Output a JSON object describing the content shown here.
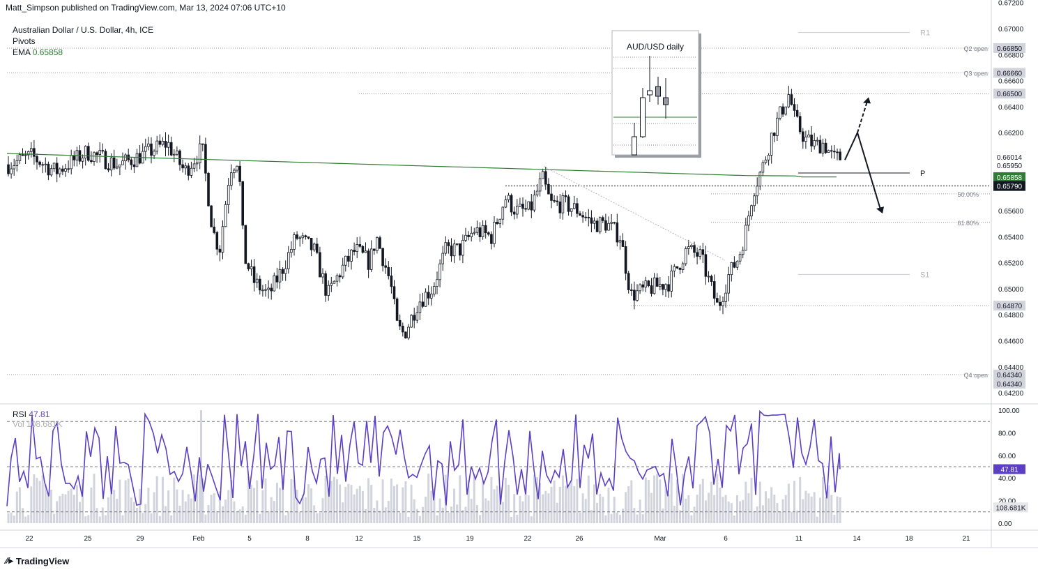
{
  "header": {
    "published": "Matt_Simpson published on TradingView.com, Mar 13, 2024 07:06 UTC+10"
  },
  "legend": {
    "symbol": "Australian Dollar / U.S. Dollar, 4h, ICE",
    "pivots": "Pivots",
    "ema_label": "EMA",
    "ema_value": "0.65858"
  },
  "inset": {
    "title": "AUD/USD daily"
  },
  "rsi_legend": {
    "rsi_label": "RSI",
    "rsi_value": "47.81",
    "vol_label": "Vol",
    "vol_value": "108.681K"
  },
  "footer": {
    "brand": "TradingView"
  },
  "colors": {
    "candle": "#131722",
    "ema": "#2e7d32",
    "rsi": "#5b3fc4",
    "volume": "#d1d4dc",
    "grid_dotted": "#9598a1"
  },
  "chart_data": [
    {
      "type": "candlestick",
      "title": "Australian Dollar / U.S. Dollar, 4h, ICE",
      "ylim": [
        0.6412,
        0.6722
      ],
      "price_axis_ticks": [
        "0.67200",
        "0.67000",
        "0.66800",
        "0.66600",
        "0.66400",
        "0.66200",
        "0.66000",
        "0.65800",
        "0.65600",
        "0.65400",
        "0.65200",
        "0.65000",
        "0.64800",
        "0.64600",
        "0.64400",
        "0.64200"
      ],
      "price_tags": [
        {
          "label": "",
          "value": "0.66850",
          "y": 0.6685,
          "style": "gray"
        },
        {
          "label": "",
          "value": "0.66660",
          "y": 0.6666,
          "style": "gray"
        },
        {
          "label": "",
          "value": "0.66500",
          "y": 0.665,
          "style": "gray"
        },
        {
          "label": "",
          "value": "0.66014",
          "y": 0.66014,
          "style": "plain"
        },
        {
          "label": "",
          "value": "0.65950",
          "y": 0.6595,
          "style": "plain"
        },
        {
          "label": "",
          "value": "0.65858",
          "y": 0.65858,
          "style": "green"
        },
        {
          "label": "",
          "value": "0.65790",
          "y": 0.6579,
          "style": "black"
        },
        {
          "label": "",
          "value": "0.64870",
          "y": 0.6487,
          "style": "gray"
        },
        {
          "label": "",
          "value": "0.64340",
          "y": 0.6434,
          "style": "gray"
        },
        {
          "label": "",
          "value": "0.64340",
          "y": 0.6434,
          "style": "gray2"
        }
      ],
      "levels": [
        {
          "label": "R1",
          "y": 0.6697
        },
        {
          "label": "Q2 open",
          "y": 0.6685
        },
        {
          "label": "Q3 open",
          "y": 0.6666
        },
        {
          "label": "",
          "y": 0.665
        },
        {
          "label": "P",
          "y": 0.6589
        },
        {
          "label": "",
          "y": 0.6579
        },
        {
          "label": "50.00%",
          "y": 0.6573
        },
        {
          "label": "61.80%",
          "y": 0.6551
        },
        {
          "label": "S1",
          "y": 0.6511
        },
        {
          "label": "",
          "y": 0.6487
        },
        {
          "label": "Q4 open",
          "y": 0.6434
        }
      ],
      "x_ticks": [
        "22",
        "25",
        "29",
        "Feb",
        "5",
        "8",
        "12",
        "15",
        "19",
        "22",
        "26",
        "Mar",
        "6",
        "11",
        "14",
        "18",
        "21"
      ],
      "ema": {
        "name": "EMA",
        "start": 0.6604,
        "end": 0.6586
      },
      "projection": {
        "up_target": 0.6644,
        "down_target": 0.6561
      }
    },
    {
      "type": "line",
      "title": "RSI",
      "ylim": [
        0,
        100
      ],
      "axis_ticks": [
        "100.00",
        "80.00",
        "60.00",
        "40.00",
        "20.00",
        "0.00"
      ],
      "levels": [
        90,
        50,
        10
      ],
      "current": 47.81,
      "volume_current": "108.681K"
    }
  ]
}
